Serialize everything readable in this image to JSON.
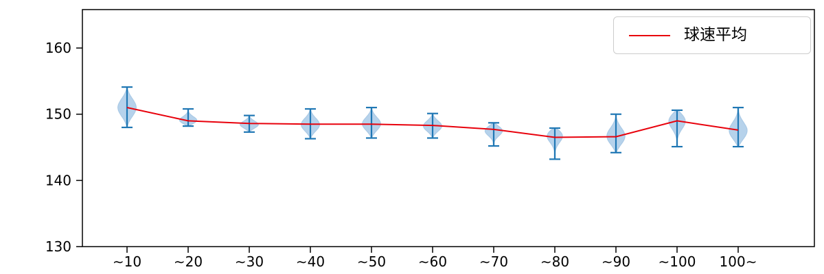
{
  "chart_data": {
    "type": "violin+line",
    "title": "",
    "xlabel": "",
    "ylabel": "",
    "categories": [
      "∼10",
      "∼20",
      "∼30",
      "∼40",
      "∼50",
      "∼60",
      "∼70",
      "∼80",
      "∼90",
      "∼100",
      "100∼"
    ],
    "yticks": [
      130,
      140,
      150,
      160
    ],
    "ylim": [
      130,
      165.8
    ],
    "grid": false,
    "legend": {
      "label": "球速平均",
      "position": "upper right"
    },
    "series": [
      {
        "name": "球速平均",
        "type": "line",
        "color": "#e8000b",
        "values": [
          151.0,
          149.0,
          148.6,
          148.5,
          148.5,
          148.3,
          147.7,
          146.5,
          146.6,
          149.0,
          147.6
        ]
      }
    ],
    "violins": [
      {
        "category": "∼10",
        "min": 148.0,
        "max": 154.1,
        "peak": 151.0
      },
      {
        "category": "∼20",
        "min": 148.2,
        "max": 150.8,
        "peak": 149.0
      },
      {
        "category": "∼30",
        "min": 147.3,
        "max": 149.8,
        "peak": 148.4
      },
      {
        "category": "∼40",
        "min": 146.3,
        "max": 150.8,
        "peak": 148.4
      },
      {
        "category": "∼50",
        "min": 146.4,
        "max": 151.0,
        "peak": 148.5
      },
      {
        "category": "∼60",
        "min": 146.4,
        "max": 150.1,
        "peak": 148.2
      },
      {
        "category": "∼70",
        "min": 145.2,
        "max": 148.7,
        "peak": 147.6
      },
      {
        "category": "∼80",
        "min": 143.2,
        "max": 147.9,
        "peak": 147.0
      },
      {
        "category": "∼90",
        "min": 144.2,
        "max": 150.0,
        "peak": 146.6
      },
      {
        "category": "∼100",
        "min": 145.1,
        "max": 150.6,
        "peak": 149.2
      },
      {
        "category": "100∼",
        "min": 145.1,
        "max": 151.0,
        "peak": 147.4
      }
    ],
    "colors": {
      "violin_fill": "#aecde9",
      "violin_edge": "#8db7dc",
      "whisker": "#1f77b4",
      "line": "#e8000b",
      "axis": "#000000"
    }
  }
}
